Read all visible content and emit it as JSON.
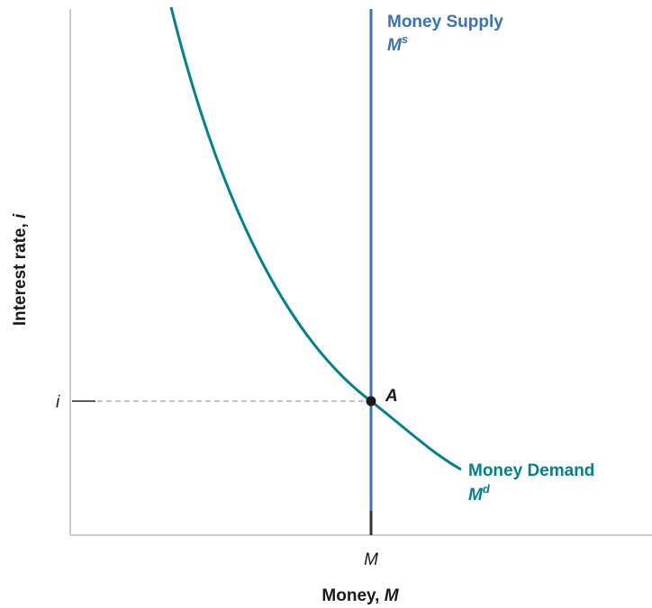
{
  "axes": {
    "x_label": "Money, ",
    "x_label_var": "M",
    "y_label": "Interest rate, ",
    "y_label_var": "i",
    "x_tick": "M",
    "y_tick": "i"
  },
  "supply": {
    "name": "Money Supply",
    "symbol": "M",
    "superscript": "s"
  },
  "demand": {
    "name": "Money Demand",
    "symbol": "M",
    "superscript": "d"
  },
  "point": {
    "label": "A"
  }
}
